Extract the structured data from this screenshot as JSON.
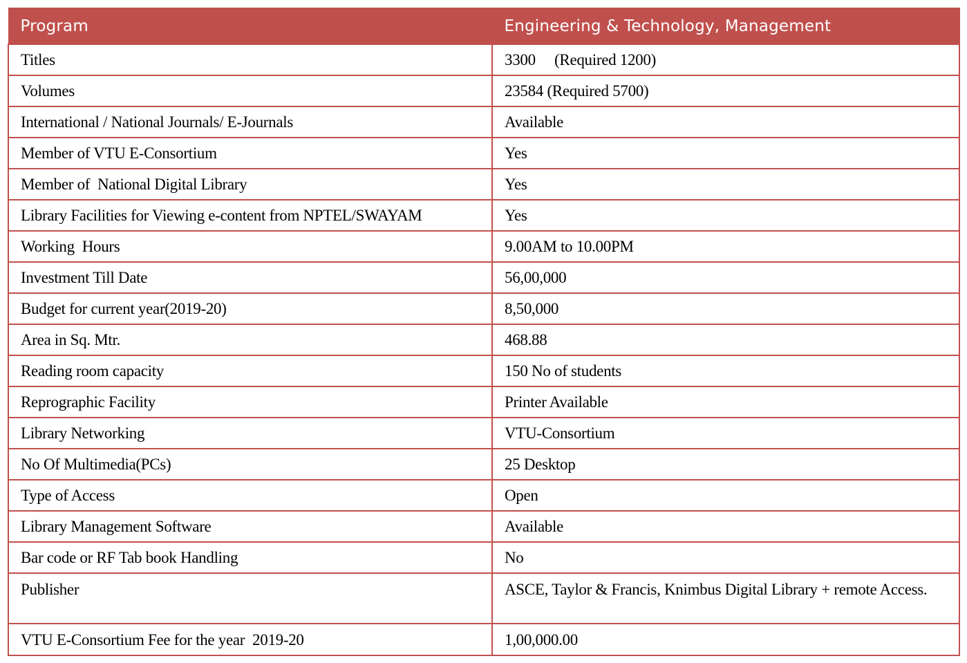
{
  "header": {
    "col1": "Program",
    "col2": "Engineering & Technology, Management"
  },
  "rows": [
    {
      "label": "Titles",
      "value": "3300     (Required 1200)"
    },
    {
      "label": "Volumes",
      "value": "23584 (Required 5700)"
    },
    {
      "label": "International / National Journals/ E-Journals",
      "value": "Available"
    },
    {
      "label": "Member of VTU E-Consortium",
      "value": "Yes"
    },
    {
      "label": "Member of  National Digital Library",
      "value": "Yes"
    },
    {
      "label": "Library Facilities for Viewing e-content from NPTEL/SWAYAM",
      "value": "Yes"
    },
    {
      "label": "Working  Hours",
      "value": "9.00AM to 10.00PM"
    },
    {
      "label": "Investment Till Date",
      "value": "56,00,000"
    },
    {
      "label": "Budget for current year(2019-20)",
      "value": "8,50,000"
    },
    {
      "label": "Area in Sq. Mtr.",
      "value": "468.88"
    },
    {
      "label": "Reading room capacity",
      "value": "150 No of students"
    },
    {
      "label": "Reprographic Facility",
      "value": "Printer Available"
    },
    {
      "label": "Library Networking",
      "value": "VTU-Consortium"
    },
    {
      "label": "No Of Multimedia(PCs)",
      "value": "25 Desktop"
    },
    {
      "label": "Type of Access",
      "value": "Open"
    },
    {
      "label": "Library Management Software",
      "value": "Available"
    },
    {
      "label": "Bar code or RF Tab book Handling",
      "value": "No"
    },
    {
      "label": "Publisher",
      "value": "ASCE, Taylor & Francis, Knimbus Digital Library + remote Access."
    },
    {
      "label": "VTU E-Consortium Fee for the year  2019-20",
      "value": "1,00,000.00"
    }
  ],
  "colors": {
    "header_bg": "#c0504d",
    "header_text": "#ffffff",
    "border": "#c0504d"
  }
}
